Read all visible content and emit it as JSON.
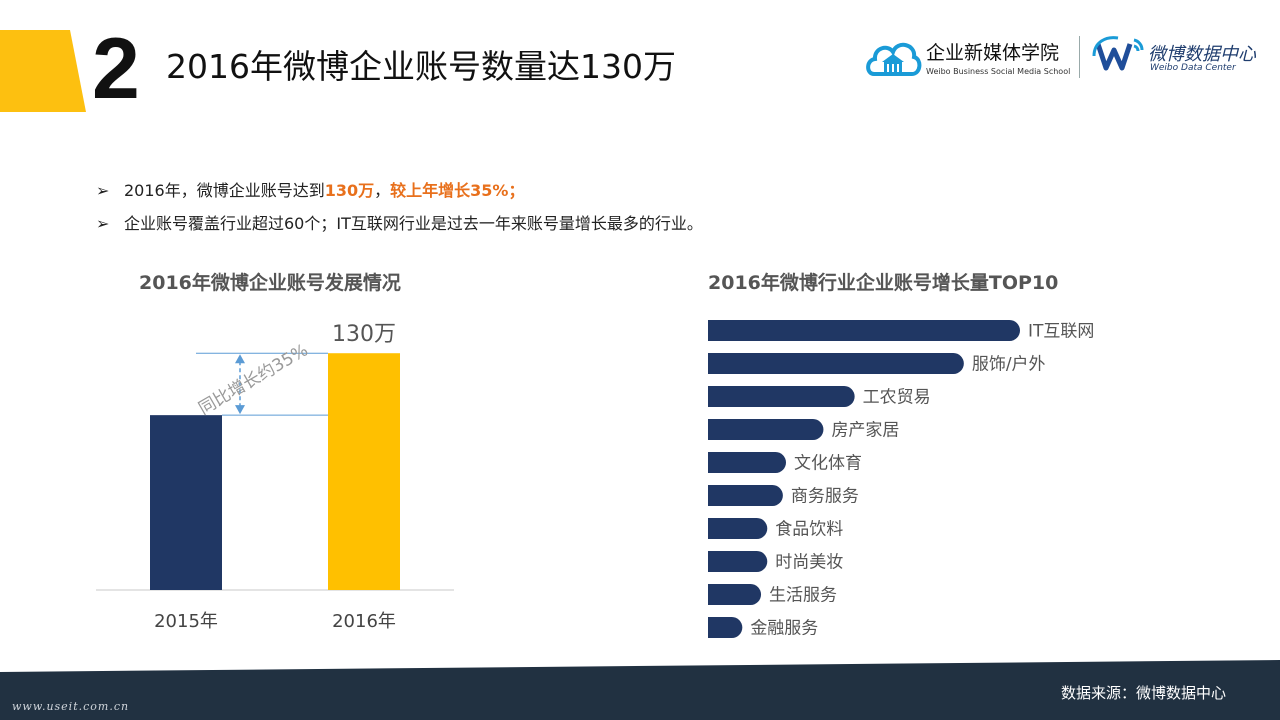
{
  "header": {
    "number": "2",
    "title": "2016年微博企业账号数量达130万"
  },
  "logos": {
    "school_name": "企业新媒体学院",
    "school_en": "Weibo Business Social Media School",
    "center_name": "微博数据中心",
    "center_en": "Weibo Data Center"
  },
  "bullets": [
    {
      "marker": "➢",
      "pre": "2016年，微博企业账号达到",
      "hl1": "130万",
      "mid": "，",
      "hl2": "较上年增长35%；"
    },
    {
      "marker": "➢",
      "text": "企业账号覆盖行业超过60个；IT互联网行业是过去一年来账号量增长最多的行业。"
    }
  ],
  "colors": {
    "navy": "#203764",
    "gold": "#ffc000",
    "accent": "#fdc010",
    "highlight": "#e8701c",
    "footer": "#213141",
    "dashed": "#5b9bd5"
  },
  "chart_data": [
    {
      "type": "bar",
      "title": "2016年微博企业账号发展情况",
      "categories": [
        "2015年",
        "2016年"
      ],
      "values": [
        96,
        130
      ],
      "data_labels": [
        "",
        "130万"
      ],
      "annotation": "同比增长约35%",
      "ylim": [
        0,
        140
      ],
      "colors": [
        "#203764",
        "#ffc000"
      ]
    },
    {
      "type": "bar",
      "orientation": "horizontal",
      "title": "2016年微博行业企业账号增长量TOP10",
      "categories": [
        "IT互联网",
        "服饰/户外",
        "工农贸易",
        "房产家居",
        "文化体育",
        "商务服务",
        "食品饮料",
        "时尚美妆",
        "生活服务",
        "金融服务"
      ],
      "values": [
        100,
        82,
        47,
        37,
        25,
        24,
        19,
        19,
        17,
        11
      ],
      "xlim": [
        0,
        100
      ],
      "color": "#203764"
    }
  ],
  "footer": {
    "source": "数据来源：微博数据中心",
    "website": "www.useit.com.cn"
  }
}
